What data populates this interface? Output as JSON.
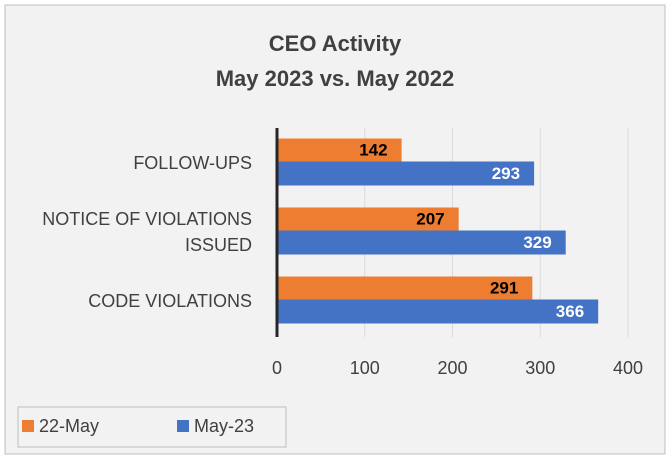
{
  "chart_data": {
    "type": "bar",
    "orientation": "horizontal",
    "title": [
      "CEO Activity",
      "May 2023 vs. May 2022"
    ],
    "categories": [
      "FOLLOW-UPS",
      "NOTICE OF VIOLATIONS ISSUED",
      "CODE VIOLATIONS"
    ],
    "series": [
      {
        "name": "22-May",
        "color": "#ed7d31",
        "values": [
          142,
          207,
          291
        ]
      },
      {
        "name": "May-23",
        "color": "#4472c4",
        "values": [
          293,
          329,
          366
        ]
      }
    ],
    "xlim": [
      0,
      400
    ],
    "xticks": [
      0,
      100,
      200,
      300,
      400
    ],
    "grid": true,
    "legend": "bottom-left"
  }
}
